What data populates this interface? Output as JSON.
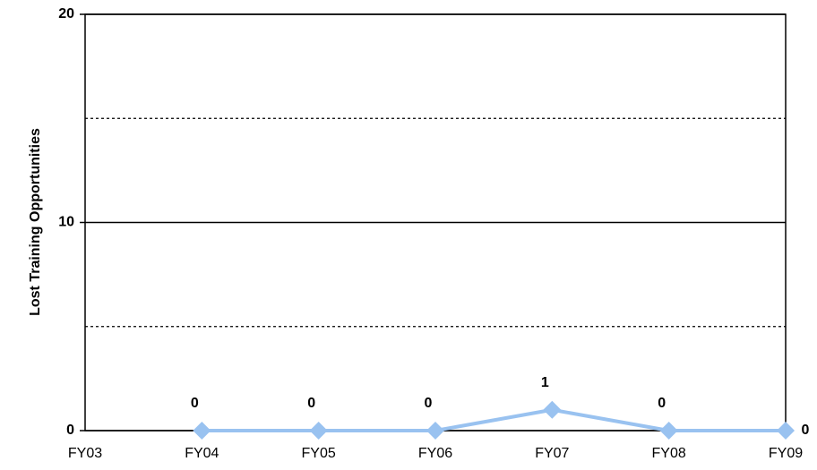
{
  "chart_data": {
    "type": "line",
    "y_label": "Lost Training Opportunities",
    "categories": [
      "FY03",
      "FY04",
      "FY05",
      "FY06",
      "FY07",
      "FY08",
      "FY09"
    ],
    "series": [
      {
        "name": "Lost Training Opportunities",
        "color": "#99c2f0",
        "values": [
          null,
          0,
          0,
          0,
          1,
          0,
          0
        ]
      }
    ],
    "ylim": [
      0,
      20
    ],
    "yticks": [
      0,
      10,
      20
    ],
    "minor_gridlines": [
      5,
      15
    ],
    "grid": true
  }
}
